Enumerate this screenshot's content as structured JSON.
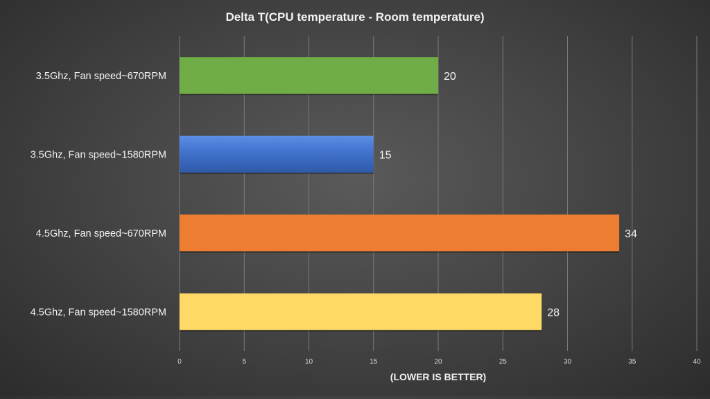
{
  "chart_data": {
    "type": "bar",
    "orientation": "horizontal",
    "title": "Delta T(CPU temperature  - Room temperature)",
    "xlabel": "(LOWER IS BETTER)",
    "ylabel": "",
    "xlim": [
      0,
      40
    ],
    "xticks": [
      0,
      5,
      10,
      15,
      20,
      25,
      30,
      35,
      40
    ],
    "grid": true,
    "categories": [
      "3.5Ghz, Fan speed~670RPM",
      "3.5Ghz, Fan speed~1580RPM",
      "4.5Ghz, Fan speed~670RPM",
      "4.5Ghz, Fan speed~1580RPM"
    ],
    "values": [
      20,
      15,
      34,
      28
    ],
    "colors": [
      "#70ad47",
      "#4472c4",
      "#ed7d31",
      "#ffd966"
    ],
    "data_labels": [
      "20",
      "15",
      "34",
      "28"
    ]
  },
  "colors": {
    "text": "#f2f2f2",
    "tick_text": "#d9d9d9",
    "gridline": "#7a7a7a"
  }
}
